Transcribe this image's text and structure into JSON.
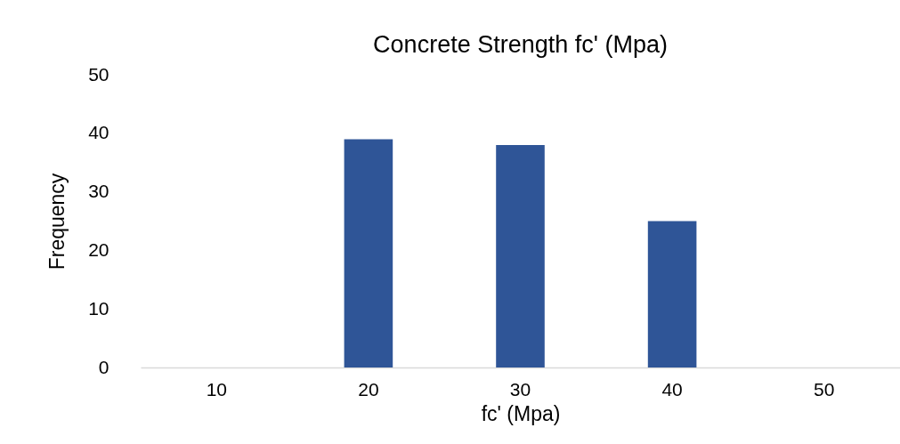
{
  "chart_data": {
    "type": "bar",
    "title": "Concrete Strength fc' (Mpa)",
    "xlabel": "fc' (Mpa)",
    "ylabel": "Frequency",
    "categories": [
      "10",
      "20",
      "30",
      "40",
      "50"
    ],
    "values": [
      0,
      39,
      38,
      25,
      0
    ],
    "color": "#2f5597",
    "ylim": [
      0,
      50
    ],
    "yticks": [
      0,
      10,
      20,
      30,
      40,
      50
    ],
    "grid": false
  }
}
